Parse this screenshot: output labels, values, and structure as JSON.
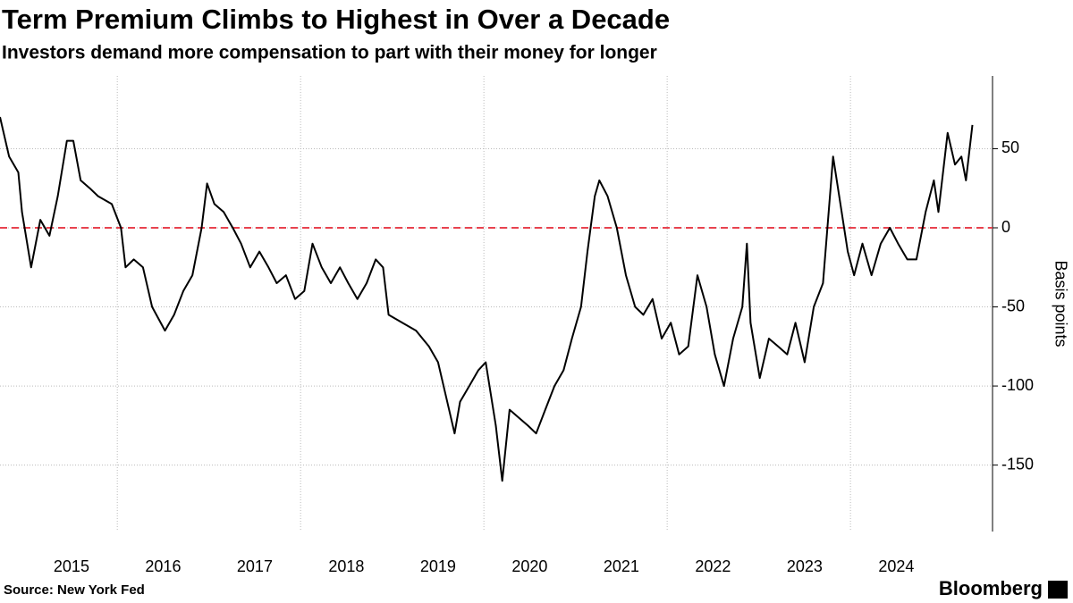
{
  "chart_data": {
    "type": "line",
    "title": "Term Premium Climbs to Highest in Over a Decade",
    "subtitle": "Investors demand more compensation to part with their money for longer",
    "source": "Source: New York Fed",
    "brand": "Bloomberg",
    "y_label": "Basis points",
    "x": [
      2014.22,
      2014.32,
      2014.42,
      2014.46,
      2014.56,
      2014.66,
      2014.76,
      2014.85,
      2014.95,
      2015.02,
      2015.1,
      2015.2,
      2015.29,
      2015.44,
      2015.54,
      2015.59,
      2015.68,
      2015.78,
      2015.88,
      2016.02,
      2016.12,
      2016.22,
      2016.32,
      2016.42,
      2016.48,
      2016.56,
      2016.66,
      2016.76,
      2016.85,
      2016.95,
      2017.05,
      2017.15,
      2017.24,
      2017.34,
      2017.44,
      2017.54,
      2017.63,
      2017.73,
      2017.83,
      2017.93,
      2018.02,
      2018.12,
      2018.22,
      2018.32,
      2018.4,
      2018.46,
      2018.61,
      2018.76,
      2018.9,
      2019.0,
      2019.1,
      2019.18,
      2019.24,
      2019.34,
      2019.44,
      2019.52,
      2019.63,
      2019.7,
      2019.78,
      2019.88,
      2019.98,
      2020.07,
      2020.17,
      2020.27,
      2020.37,
      2020.46,
      2020.56,
      2020.63,
      2020.71,
      2020.76,
      2020.85,
      2020.95,
      2021.05,
      2021.15,
      2021.24,
      2021.34,
      2021.44,
      2021.54,
      2021.63,
      2021.73,
      2021.83,
      2021.93,
      2022.02,
      2022.12,
      2022.22,
      2022.32,
      2022.37,
      2022.41,
      2022.51,
      2022.61,
      2022.71,
      2022.81,
      2022.9,
      2023.0,
      2023.1,
      2023.2,
      2023.31,
      2023.39,
      2023.47,
      2023.54,
      2023.63,
      2023.73,
      2023.83,
      2023.93,
      2024.02,
      2024.12,
      2024.22,
      2024.32,
      2024.41,
      2024.46,
      2024.56,
      2024.64,
      2024.71,
      2024.76,
      2024.83
    ],
    "series": [
      {
        "name": "Term premium",
        "color": "#000000",
        "values": [
          70,
          45,
          35,
          10,
          -25,
          5,
          -5,
          20,
          55,
          55,
          30,
          25,
          20,
          15,
          0,
          -25,
          -20,
          -25,
          -50,
          -65,
          -55,
          -40,
          -30,
          0,
          28,
          15,
          10,
          0,
          -10,
          -25,
          -15,
          -25,
          -35,
          -30,
          -45,
          -40,
          -10,
          -25,
          -35,
          -25,
          -35,
          -45,
          -35,
          -20,
          -25,
          -55,
          -60,
          -65,
          -75,
          -85,
          -110,
          -130,
          -110,
          -100,
          -90,
          -85,
          -125,
          -160,
          -115,
          -120,
          -125,
          -130,
          -115,
          -100,
          -90,
          -70,
          -50,
          -15,
          20,
          30,
          20,
          0,
          -30,
          -50,
          -55,
          -45,
          -70,
          -60,
          -80,
          -75,
          -30,
          -50,
          -80,
          -100,
          -70,
          -50,
          -10,
          -60,
          -95,
          -70,
          -75,
          -80,
          -60,
          -85,
          -50,
          -35,
          45,
          15,
          -15,
          -30,
          -10,
          -30,
          -10,
          0,
          -10,
          -20,
          -20,
          10,
          30,
          10,
          60,
          40,
          45,
          30,
          65
        ]
      }
    ],
    "xlim": [
      2014.22,
      2025.05
    ],
    "xticks": [
      2015,
      2016,
      2017,
      2018,
      2019,
      2020,
      2021,
      2022,
      2023,
      2024
    ],
    "ylim": [
      -192,
      96
    ],
    "yticks": [
      -150,
      -100,
      -50,
      0,
      50
    ],
    "grid": true,
    "reference_line": {
      "value": 0,
      "color": "#e8434f"
    }
  }
}
